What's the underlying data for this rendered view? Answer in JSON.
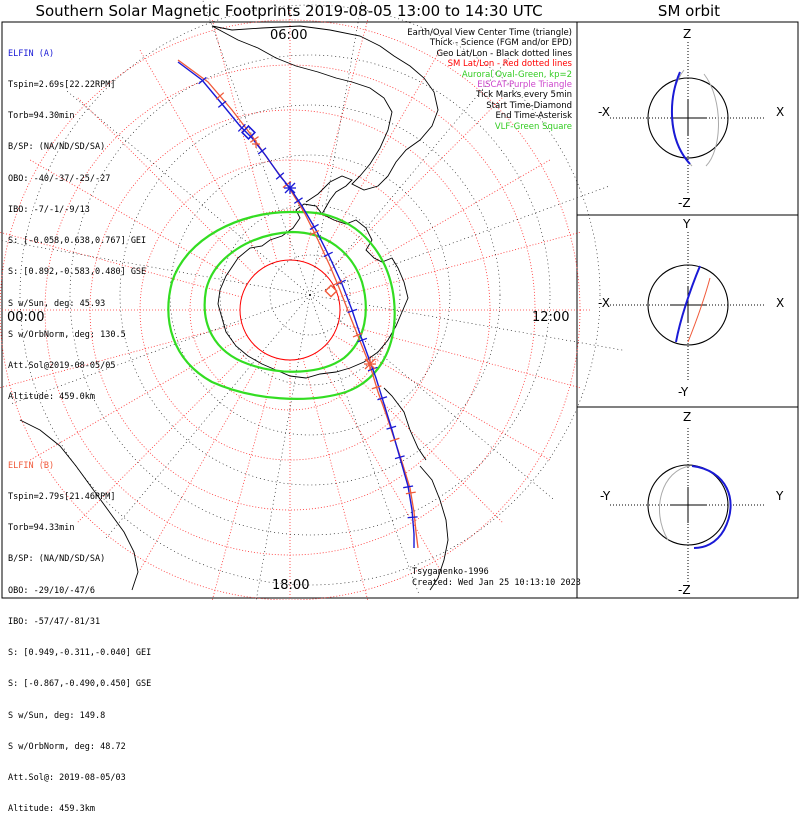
{
  "title": "Southern Solar Magnetic Footprints 2019-08-05 13:00 to 14:30 UTC",
  "orbit_title": "SM orbit",
  "colors": {
    "elfin_a": "#1a1ad6",
    "elfin_b": "#f05a3a",
    "aurora": "#33dd22",
    "eiscat": "#d040d0",
    "vlf": "#33dd22"
  },
  "legend": [
    {
      "text": "Earth/Oval View Center Time (triangle)",
      "color": "#000000"
    },
    {
      "text": "Thick - Science (FGM and/or EPD)",
      "color": "#000000"
    },
    {
      "text": "Geo Lat/Lon - Black dotted lines",
      "color": "#000000"
    },
    {
      "text": "SM Lat/Lon - Red dotted lines",
      "color": "#ff0000"
    },
    {
      "text": "Auroral Oval-Green, kp=2",
      "color": "#33cc22"
    },
    {
      "text": "EISCAT-Purple Triangle",
      "color": "#cc44cc"
    },
    {
      "text": "Tick Marks every 5min",
      "color": "#000000"
    },
    {
      "text": "Start Time-Diamond",
      "color": "#000000"
    },
    {
      "text": "End Time-Asterisk",
      "color": "#000000"
    },
    {
      "text": "VLF-Green Square",
      "color": "#33cc22"
    }
  ],
  "elfin_a": {
    "header": "ELFIN (A)",
    "lines": [
      "Tspin=2.69s[22.22RPM]",
      "Torb=94.30min",
      "B/SP: (NA/ND/SD/SA)",
      "OBO: -40/-37/-25/-27",
      "IBO: -7/-1/-9/13",
      "S: [-0.058,0.638,0.767] GEI",
      "S: [0.892,-0.583,0.480] GSE",
      "S w/Sun, deg: 45.93",
      "S w/OrbNorm, deg: 130.5",
      "Att.Sol@2019-08-05/05",
      "Altitude: 459.0km"
    ]
  },
  "elfin_b": {
    "header": "ELFIN (B)",
    "lines": [
      "Tspin=2.79s[21.46RPM]",
      "Torb=94.33min",
      "B/SP: (NA/ND/SD/SA)",
      "OBO: -29/10/-47/6",
      "IBO: -57/47/-81/31",
      "S: [0.949,-0.311,-0.040] GEI",
      "S: [-0.867,-0.490,0.450] GSE",
      "S w/Sun, deg: 149.8",
      "S w/OrbNorm, deg: 48.72",
      "Att.Sol@: 2019-08-05/03",
      "Altitude: 459.3km"
    ]
  },
  "footer": {
    "credit": "Tsyganenko-1996",
    "created": "Created: Wed Jan 25 10:13:10 2023"
  },
  "polar_plot": {
    "clock_labels": {
      "top": "06:00",
      "left": "00:00",
      "right": "12:00",
      "bottom": "18:00"
    }
  },
  "orbit_panels": [
    {
      "axes": {
        "top": "Z",
        "bottom": "-Z",
        "left": "-X",
        "right": "X"
      }
    },
    {
      "axes": {
        "top": "Y",
        "bottom": "-Y",
        "left": "-X",
        "right": "X"
      }
    },
    {
      "axes": {
        "top": "Z",
        "bottom": "-Z",
        "left": "-Y",
        "right": "Y"
      }
    }
  ],
  "chart_data": {
    "type": "polar footprint map",
    "title": "Southern Solar Magnetic Footprints 2019-08-05 13:00 to 14:30 UTC",
    "legend_placement": "top-right",
    "grid": true,
    "mlt_labels": [
      "06:00",
      "00:00",
      "12:00",
      "18:00"
    ],
    "series": [
      {
        "name": "ELFIN (A)"
      },
      {
        "name": "ELFIN (B)"
      }
    ]
  }
}
